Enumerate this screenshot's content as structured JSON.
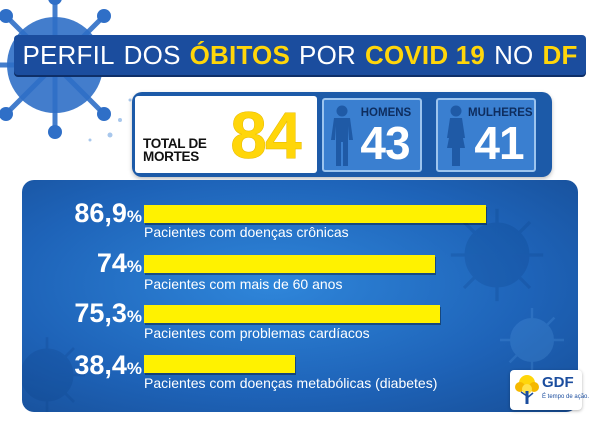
{
  "title": {
    "words": [
      {
        "text": "PERFIL",
        "highlight": false
      },
      {
        "text": "DOS",
        "highlight": false
      },
      {
        "text": "ÓBITOS",
        "highlight": true
      },
      {
        "text": "POR",
        "highlight": false
      },
      {
        "text": "COVID 19",
        "highlight": true
      },
      {
        "text": "NO",
        "highlight": false
      },
      {
        "text": "DF",
        "highlight": true
      }
    ]
  },
  "totals": {
    "label": "TOTAL DE MORTES",
    "value": "84",
    "men": {
      "label": "HOMENS",
      "value": "43",
      "icon": "male-figure-icon"
    },
    "women": {
      "label": "MULHERES",
      "value": "41",
      "icon": "female-figure-icon"
    }
  },
  "stats": [
    {
      "value": 86.9,
      "display": "86,9",
      "unit": "%",
      "label": "Pacientes com doenças crônicas"
    },
    {
      "value": 74,
      "display": "74",
      "unit": "%",
      "label": "Pacientes com mais de 60 anos"
    },
    {
      "value": 75.3,
      "display": "75,3",
      "unit": "%",
      "label": "Pacientes com problemas cardíacos"
    },
    {
      "value": 38.4,
      "display": "38,4",
      "unit": "%",
      "label": "Pacientes com doenças metabólicas (diabetes)"
    }
  ],
  "logo": {
    "name": "GDF",
    "slogan": "É tempo de ação.",
    "icon": "ipe-tree-icon"
  },
  "colors": {
    "brand_blue": "#1b4d9e",
    "panel_blue": "#1e63b8",
    "highlight_yellow": "#ffd60a",
    "bar_yellow": "#fff200"
  }
}
